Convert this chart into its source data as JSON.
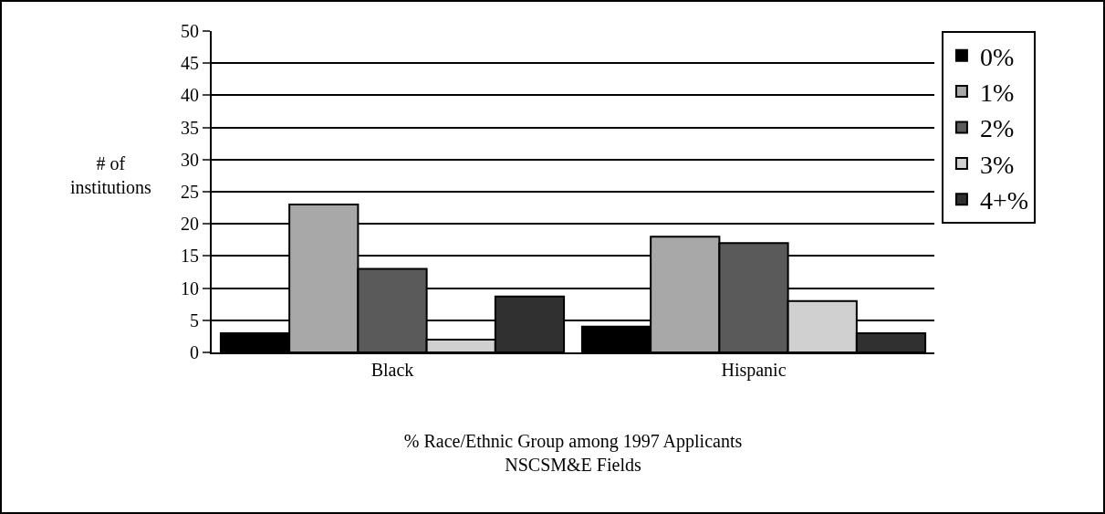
{
  "chart_data": {
    "type": "bar",
    "xlabel": "% Race/Ethnic Group among 1997 Applicants\nNSCSM&E Fields",
    "ylabel": "# of\ninstitutions",
    "categories": [
      "Black",
      "Hispanic"
    ],
    "series": [
      {
        "name": "0%",
        "color": "#000000",
        "values": [
          3,
          4
        ]
      },
      {
        "name": "1%",
        "color": "#a8a8a8",
        "values": [
          23,
          18
        ]
      },
      {
        "name": "2%",
        "color": "#5a5a5a",
        "values": [
          13,
          17
        ]
      },
      {
        "name": "3%",
        "color": "#d0d0d0",
        "values": [
          2,
          8
        ]
      },
      {
        "name": "4+%",
        "color": "#303030",
        "values": [
          8.7,
          3
        ]
      }
    ],
    "ylim": [
      0,
      50
    ],
    "yticks": [
      0,
      5,
      10,
      15,
      20,
      25,
      30,
      35,
      40,
      45,
      50
    ],
    "grid": "y",
    "legend": "right"
  }
}
